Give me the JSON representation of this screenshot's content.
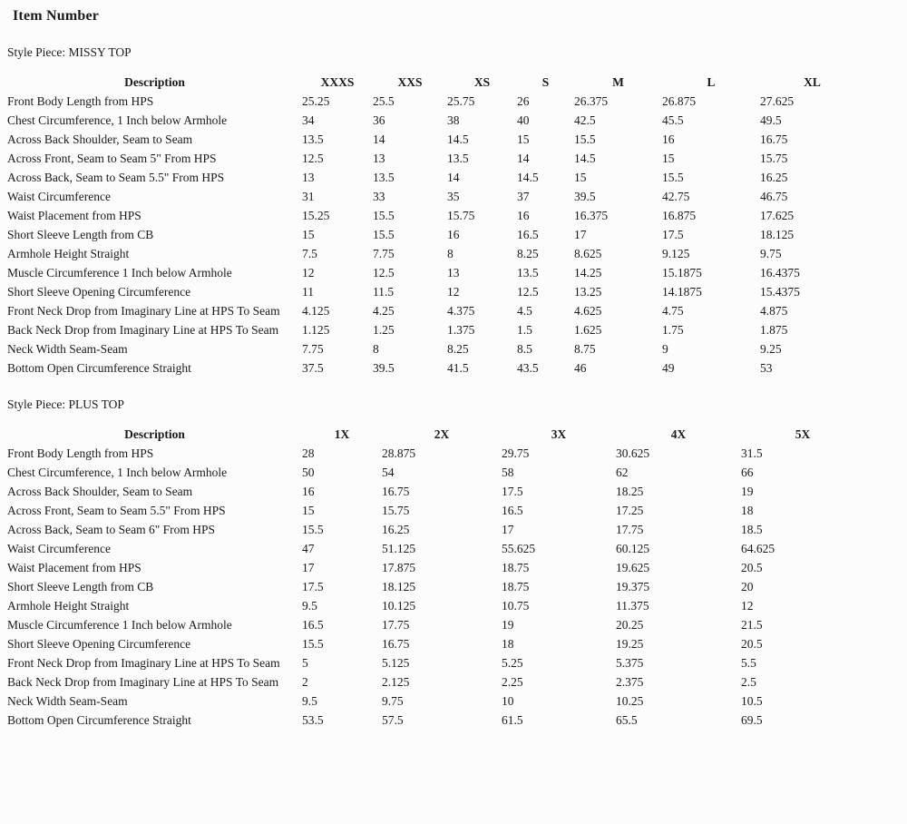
{
  "title": "Item Number",
  "colors": {
    "background": "#fcfcfc",
    "text": "#1a1a1a"
  },
  "sections": [
    {
      "label": "Style Piece: MISSY TOP",
      "table": {
        "description_header": "Description",
        "size_headers": [
          "XXXS",
          "XXS",
          "XS",
          "S",
          "M",
          "L",
          "XL"
        ],
        "rows": [
          {
            "description": "Front Body Length from HPS",
            "values": [
              "25.25",
              "25.5",
              "25.75",
              "26",
              "26.375",
              "26.875",
              "27.625"
            ]
          },
          {
            "description": "Chest Circumference, 1 Inch below Armhole",
            "values": [
              "34",
              "36",
              "38",
              "40",
              "42.5",
              "45.5",
              "49.5"
            ]
          },
          {
            "description": "Across Back Shoulder, Seam to Seam",
            "values": [
              "13.5",
              "14",
              "14.5",
              "15",
              "15.5",
              "16",
              "16.75"
            ]
          },
          {
            "description": "Across Front, Seam to Seam 5\" From HPS",
            "values": [
              "12.5",
              "13",
              "13.5",
              "14",
              "14.5",
              "15",
              "15.75"
            ]
          },
          {
            "description": "Across Back, Seam to Seam 5.5\" From HPS",
            "values": [
              "13",
              "13.5",
              "14",
              "14.5",
              "15",
              "15.5",
              "16.25"
            ]
          },
          {
            "description": "Waist Circumference",
            "values": [
              "31",
              "33",
              "35",
              "37",
              "39.5",
              "42.75",
              "46.75"
            ]
          },
          {
            "description": "Waist Placement from HPS",
            "values": [
              "15.25",
              "15.5",
              "15.75",
              "16",
              "16.375",
              "16.875",
              "17.625"
            ]
          },
          {
            "description": "Short Sleeve Length from CB",
            "values": [
              "15",
              "15.5",
              "16",
              "16.5",
              "17",
              "17.5",
              "18.125"
            ]
          },
          {
            "description": "Armhole Height Straight",
            "values": [
              "7.5",
              "7.75",
              "8",
              "8.25",
              "8.625",
              "9.125",
              "9.75"
            ]
          },
          {
            "description": "Muscle Circumference 1 Inch below Armhole",
            "values": [
              "12",
              "12.5",
              "13",
              "13.5",
              "14.25",
              "15.1875",
              "16.4375"
            ]
          },
          {
            "description": "Short Sleeve Opening Circumference",
            "values": [
              "11",
              "11.5",
              "12",
              "12.5",
              "13.25",
              "14.1875",
              "15.4375"
            ]
          },
          {
            "description": "Front Neck Drop from Imaginary Line at HPS To Seam",
            "values": [
              "4.125",
              "4.25",
              "4.375",
              "4.5",
              "4.625",
              "4.75",
              "4.875"
            ]
          },
          {
            "description": "Back Neck Drop from Imaginary Line at HPS To Seam",
            "values": [
              "1.125",
              "1.25",
              "1.375",
              "1.5",
              "1.625",
              "1.75",
              "1.875"
            ]
          },
          {
            "description": "Neck Width Seam-Seam",
            "values": [
              "7.75",
              "8",
              "8.25",
              "8.5",
              "8.75",
              "9",
              "9.25"
            ]
          },
          {
            "description": "Bottom Open Circumference Straight",
            "values": [
              "37.5",
              "39.5",
              "41.5",
              "43.5",
              "46",
              "49",
              "53"
            ]
          }
        ]
      }
    },
    {
      "label": "Style Piece: PLUS TOP",
      "table": {
        "description_header": "Description",
        "size_headers": [
          "1X",
          "2X",
          "3X",
          "4X",
          "5X"
        ],
        "rows": [
          {
            "description": "Front Body Length from HPS",
            "values": [
              "28",
              "28.875",
              "29.75",
              "30.625",
              "31.5"
            ]
          },
          {
            "description": "Chest Circumference, 1 Inch below Armhole",
            "values": [
              "50",
              "54",
              "58",
              "62",
              "66"
            ]
          },
          {
            "description": "Across Back Shoulder, Seam to Seam",
            "values": [
              "16",
              "16.75",
              "17.5",
              "18.25",
              "19"
            ]
          },
          {
            "description": "Across Front, Seam to Seam 5.5\" From HPS",
            "values": [
              "15",
              "15.75",
              "16.5",
              "17.25",
              "18"
            ]
          },
          {
            "description": "Across Back, Seam to Seam 6\" From HPS",
            "values": [
              "15.5",
              "16.25",
              "17",
              "17.75",
              "18.5"
            ]
          },
          {
            "description": "Waist Circumference",
            "values": [
              "47",
              "51.125",
              "55.625",
              "60.125",
              "64.625"
            ]
          },
          {
            "description": "Waist Placement from HPS",
            "values": [
              "17",
              "17.875",
              "18.75",
              "19.625",
              "20.5"
            ]
          },
          {
            "description": "Short Sleeve Length from CB",
            "values": [
              "17.5",
              "18.125",
              "18.75",
              "19.375",
              "20"
            ]
          },
          {
            "description": "Armhole Height Straight",
            "values": [
              "9.5",
              "10.125",
              "10.75",
              "11.375",
              "12"
            ]
          },
          {
            "description": "Muscle Circumference 1 Inch below Armhole",
            "values": [
              "16.5",
              "17.75",
              "19",
              "20.25",
              "21.5"
            ]
          },
          {
            "description": "Short Sleeve Opening Circumference",
            "values": [
              "15.5",
              "16.75",
              "18",
              "19.25",
              "20.5"
            ]
          },
          {
            "description": "Front Neck Drop from Imaginary Line at HPS To Seam",
            "values": [
              "5",
              "5.125",
              "5.25",
              "5.375",
              "5.5"
            ]
          },
          {
            "description": "Back Neck Drop from Imaginary Line at HPS To Seam",
            "values": [
              "2",
              "2.125",
              "2.25",
              "2.375",
              "2.5"
            ]
          },
          {
            "description": "Neck Width Seam-Seam",
            "values": [
              "9.5",
              "9.75",
              "10",
              "10.25",
              "10.5"
            ]
          },
          {
            "description": "Bottom Open Circumference Straight",
            "values": [
              "53.5",
              "57.5",
              "61.5",
              "65.5",
              "69.5"
            ]
          }
        ]
      }
    }
  ]
}
